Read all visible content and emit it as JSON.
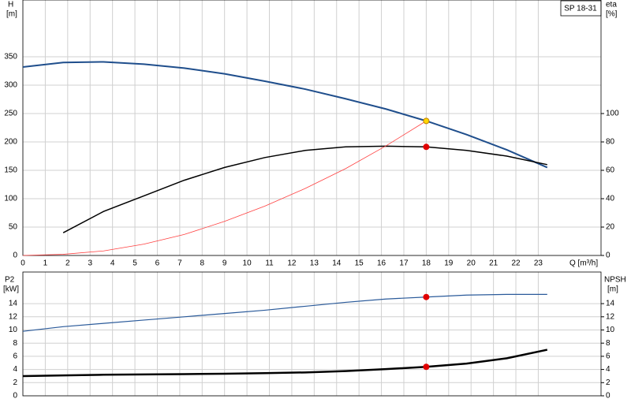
{
  "chart_data": [
    {
      "type": "line",
      "label": "SP 18-31",
      "ylabel": "H",
      "yunit": "[m]",
      "y2label": "eta",
      "y2unit": "[%]",
      "xlabel": "Q [m³/h]",
      "xlim": [
        0,
        25.8
      ],
      "xticks": [
        0,
        1,
        2,
        3,
        4,
        5,
        6,
        7,
        8,
        9,
        10,
        11,
        12,
        13,
        14,
        15,
        16,
        17,
        18,
        19,
        20,
        21,
        22,
        23
      ],
      "ylim": [
        0,
        450
      ],
      "yticks": [
        0,
        50,
        100,
        150,
        200,
        250,
        300,
        350
      ],
      "y2lim": [
        0,
        180
      ],
      "y2ticks": [
        0,
        20,
        40,
        60,
        80,
        100
      ],
      "grid": true,
      "series": [
        {
          "color": "#1f4e8c",
          "width": 2,
          "x": [
            0,
            1.8,
            3.6,
            5.4,
            7.2,
            9,
            10.8,
            12.6,
            14.4,
            16.2,
            18,
            19.8,
            21.6,
            23.4
          ],
          "values": [
            332,
            340,
            341,
            337,
            330,
            320,
            307,
            293,
            276,
            258,
            237,
            213,
            186,
            155
          ]
        },
        {
          "color": "#000000",
          "width": 1.5,
          "axis": "y2",
          "x": [
            1.8,
            3.6,
            5.4,
            7.2,
            9,
            10.8,
            12.6,
            14.4,
            16.2,
            18,
            19.8,
            21.6,
            23.4
          ],
          "values": [
            16,
            31,
            42,
            53,
            62,
            69,
            74,
            76.5,
            77,
            76.5,
            74,
            70,
            64
          ]
        },
        {
          "color": "#ff4040",
          "width": 0.8,
          "x": [
            0,
            1.8,
            3.6,
            5.4,
            7.2,
            9,
            10.8,
            12.6,
            14.4,
            16.2,
            18
          ],
          "values": [
            0,
            2,
            8,
            20,
            37,
            60,
            87,
            118,
            153,
            193,
            237
          ]
        }
      ],
      "markers": [
        {
          "x": 18,
          "y": 237,
          "color": "#ffd700"
        },
        {
          "x": 18,
          "y": 76.5,
          "color": "#e00000",
          "axis": "y2"
        }
      ]
    },
    {
      "type": "line",
      "ylabel": "P2",
      "yunit": "[kW]",
      "y2label": "NPSH",
      "y2unit": "[m]",
      "xlim": [
        0,
        25.8
      ],
      "ylim": [
        0,
        18.8
      ],
      "yticks": [
        0,
        2,
        4,
        6,
        8,
        10,
        12,
        14
      ],
      "y2lim": [
        0,
        18.8
      ],
      "y2ticks": [
        0,
        2,
        4,
        6,
        8,
        10,
        12,
        14
      ],
      "grid": true,
      "series": [
        {
          "color": "#2a5a9a",
          "width": 1.2,
          "x": [
            0,
            1.8,
            3.6,
            5.4,
            7.2,
            9,
            10.8,
            12.6,
            14.4,
            16.2,
            18,
            19.8,
            21.6,
            23.4
          ],
          "values": [
            9.8,
            10.5,
            11.0,
            11.5,
            12.0,
            12.5,
            13.0,
            13.6,
            14.2,
            14.7,
            15.0,
            15.3,
            15.4,
            15.4
          ]
        },
        {
          "color": "#000000",
          "width": 2.5,
          "axis": "y2",
          "x": [
            0,
            1.8,
            3.6,
            5.4,
            7.2,
            9,
            10.8,
            12.6,
            14.4,
            16.2,
            18,
            19.8,
            21.6,
            23.4
          ],
          "values": [
            3.0,
            3.1,
            3.2,
            3.25,
            3.3,
            3.35,
            3.45,
            3.55,
            3.75,
            4.05,
            4.4,
            4.9,
            5.7,
            7.0
          ]
        }
      ],
      "markers": [
        {
          "x": 18,
          "y": 15.0,
          "color": "#e00000"
        },
        {
          "x": 18,
          "y": 4.4,
          "color": "#e00000",
          "axis": "y2"
        }
      ]
    }
  ]
}
